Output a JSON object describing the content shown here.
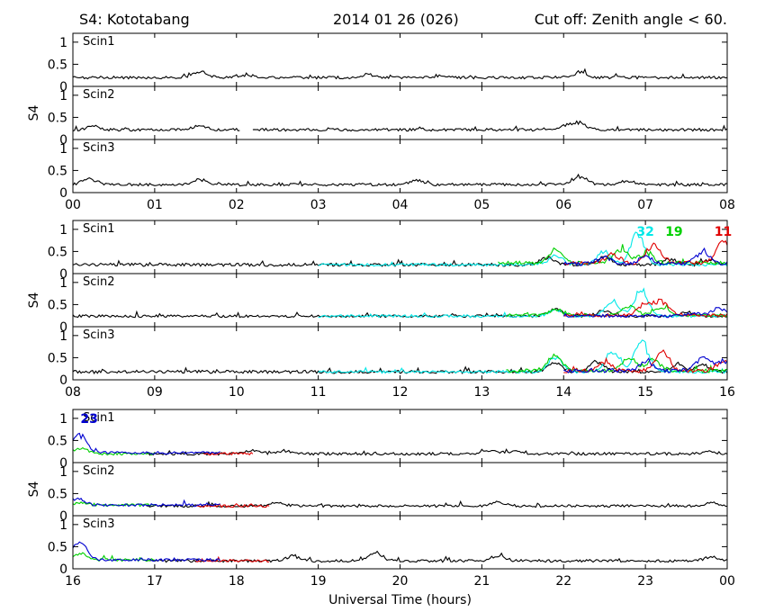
{
  "header": {
    "station": "S4: Kototabang",
    "date": "2014 01 26 (026)",
    "cutoff": "Cut off: Zenith angle < 60."
  },
  "chart_data": {
    "type": "line",
    "ylabel": "S4",
    "xlabel": "Universal Time (hours)",
    "ylim": [
      0,
      1.2
    ],
    "yticks": [
      "0",
      "0.5",
      "1"
    ],
    "panel_labels": [
      "Scin1",
      "Scin2",
      "Scin3"
    ],
    "colors": {
      "black": "#000000",
      "red": "#e00000",
      "green": "#00d000",
      "blue": "#0000d0",
      "cyan": "#00e8e8"
    },
    "groups": [
      {
        "hours": [
          0,
          8
        ],
        "tick_labels": [
          "00",
          "01",
          "02",
          "03",
          "04",
          "05",
          "06",
          "07",
          "08"
        ],
        "annotations": [],
        "panels": [
          {
            "label": "Scin1",
            "gaps": [],
            "series": [
              {
                "color": "black",
                "baseline": 0.2,
                "noise": 0.03,
                "bumps": [
                  [
                    1.55,
                    0.35
                  ],
                  [
                    3.6,
                    0.28
                  ],
                  [
                    6.2,
                    0.33
                  ],
                  [
                    2.1,
                    0.26
                  ],
                  [
                    4.5,
                    0.25
                  ]
                ]
              }
            ]
          },
          {
            "label": "Scin2",
            "gaps": [
              [
                2.05,
                2.2
              ]
            ],
            "series": [
              {
                "color": "black",
                "baseline": 0.22,
                "noise": 0.03,
                "bumps": [
                  [
                    0.25,
                    0.3
                  ],
                  [
                    1.55,
                    0.32
                  ],
                  [
                    6.2,
                    0.38
                  ],
                  [
                    6.05,
                    0.32
                  ]
                ]
              }
            ]
          },
          {
            "label": "Scin3",
            "gaps": [],
            "series": [
              {
                "color": "black",
                "baseline": 0.18,
                "noise": 0.03,
                "bumps": [
                  [
                    0.2,
                    0.32
                  ],
                  [
                    1.55,
                    0.3
                  ],
                  [
                    4.2,
                    0.28
                  ],
                  [
                    6.2,
                    0.38
                  ],
                  [
                    6.8,
                    0.25
                  ]
                ]
              }
            ]
          }
        ]
      },
      {
        "hours": [
          8,
          16
        ],
        "tick_labels": [
          "08",
          "09",
          "10",
          "11",
          "12",
          "13",
          "14",
          "15",
          "16"
        ],
        "annotations": [
          {
            "text": "32",
            "color": "cyan",
            "x": 15.0,
            "y": 0.85
          },
          {
            "text": "19",
            "color": "green",
            "x": 15.35,
            "y": 0.85
          },
          {
            "text": "11",
            "color": "red",
            "x": 15.95,
            "y": 0.85
          }
        ],
        "panels": [
          {
            "label": "Scin1",
            "gaps": [],
            "series": [
              {
                "color": "black",
                "baseline": 0.2,
                "noise": 0.035,
                "bumps": [
                  [
                    13.8,
                    0.38
                  ],
                  [
                    14.5,
                    0.42
                  ],
                  [
                    15.3,
                    0.35
                  ],
                  [
                    15.8,
                    0.32
                  ]
                ]
              },
              {
                "color": "cyan",
                "baseline": 0.2,
                "start": 11.0,
                "noise": 0.03,
                "bumps": [
                  [
                    14.9,
                    0.98
                  ],
                  [
                    14.5,
                    0.55
                  ],
                  [
                    13.9,
                    0.45
                  ]
                ]
              },
              {
                "color": "green",
                "baseline": 0.24,
                "start": 13.2,
                "noise": 0.04,
                "bumps": [
                  [
                    13.9,
                    0.6
                  ],
                  [
                    14.7,
                    0.6
                  ],
                  [
                    15.0,
                    0.5
                  ]
                ]
              },
              {
                "color": "red",
                "baseline": 0.24,
                "start": 14.0,
                "noise": 0.04,
                "bumps": [
                  [
                    15.1,
                    0.72
                  ],
                  [
                    15.95,
                    0.8
                  ],
                  [
                    14.6,
                    0.45
                  ]
                ]
              },
              {
                "color": "blue",
                "baseline": 0.22,
                "start": 14.0,
                "noise": 0.04,
                "bumps": [
                  [
                    15.7,
                    0.52
                  ],
                  [
                    15.0,
                    0.4
                  ],
                  [
                    14.5,
                    0.38
                  ]
                ]
              }
            ]
          },
          {
            "label": "Scin2",
            "gaps": [],
            "series": [
              {
                "color": "black",
                "baseline": 0.24,
                "noise": 0.03,
                "bumps": [
                  [
                    13.9,
                    0.4
                  ],
                  [
                    14.5,
                    0.38
                  ],
                  [
                    15.5,
                    0.35
                  ]
                ]
              },
              {
                "color": "cyan",
                "baseline": 0.24,
                "start": 11.0,
                "noise": 0.03,
                "bumps": [
                  [
                    14.95,
                    0.88
                  ],
                  [
                    14.6,
                    0.62
                  ],
                  [
                    13.9,
                    0.4
                  ]
                ]
              },
              {
                "color": "green",
                "baseline": 0.26,
                "start": 13.3,
                "noise": 0.035,
                "bumps": [
                  [
                    13.9,
                    0.4
                  ],
                  [
                    14.8,
                    0.5
                  ],
                  [
                    15.2,
                    0.45
                  ]
                ]
              },
              {
                "color": "red",
                "baseline": 0.26,
                "start": 14.0,
                "noise": 0.035,
                "bumps": [
                  [
                    15.2,
                    0.62
                  ],
                  [
                    15.0,
                    0.55
                  ]
                ]
              },
              {
                "color": "blue",
                "baseline": 0.24,
                "start": 14.0,
                "noise": 0.035,
                "bumps": [
                  [
                    15.9,
                    0.45
                  ],
                  [
                    15.6,
                    0.32
                  ]
                ]
              }
            ]
          },
          {
            "label": "Scin3",
            "gaps": [],
            "series": [
              {
                "color": "black",
                "baseline": 0.18,
                "noise": 0.035,
                "bumps": [
                  [
                    13.9,
                    0.42
                  ],
                  [
                    14.4,
                    0.45
                  ],
                  [
                    15.4,
                    0.38
                  ],
                  [
                    15.7,
                    0.35
                  ]
                ]
              },
              {
                "color": "cyan",
                "baseline": 0.18,
                "start": 11.0,
                "noise": 0.03,
                "bumps": [
                  [
                    14.95,
                    0.98
                  ],
                  [
                    14.6,
                    0.7
                  ],
                  [
                    13.9,
                    0.55
                  ]
                ]
              },
              {
                "color": "green",
                "baseline": 0.2,
                "start": 13.3,
                "noise": 0.04,
                "bumps": [
                  [
                    13.9,
                    0.6
                  ],
                  [
                    14.8,
                    0.55
                  ],
                  [
                    15.1,
                    0.5
                  ]
                ]
              },
              {
                "color": "red",
                "baseline": 0.2,
                "start": 14.0,
                "noise": 0.04,
                "bumps": [
                  [
                    15.2,
                    0.72
                  ],
                  [
                    15.95,
                    0.45
                  ],
                  [
                    14.5,
                    0.4
                  ]
                ]
              },
              {
                "color": "blue",
                "baseline": 0.2,
                "start": 14.0,
                "noise": 0.04,
                "bumps": [
                  [
                    15.7,
                    0.55
                  ],
                  [
                    15.95,
                    0.48
                  ],
                  [
                    15.0,
                    0.42
                  ]
                ]
              }
            ]
          }
        ]
      },
      {
        "hours": [
          16,
          24
        ],
        "tick_labels": [
          "16",
          "17",
          "18",
          "19",
          "20",
          "21",
          "22",
          "23",
          "00"
        ],
        "annotations": [
          {
            "text": "23",
            "color": "blue",
            "x": 16.2,
            "y": 0.9
          }
        ],
        "panels": [
          {
            "label": "Scin1",
            "gaps": [],
            "series": [
              {
                "color": "black",
                "baseline": 0.2,
                "start": 16.9,
                "noise": 0.03,
                "bumps": [
                  [
                    18.2,
                    0.3
                  ],
                  [
                    18.6,
                    0.28
                  ],
                  [
                    21.1,
                    0.3
                  ],
                  [
                    21.4,
                    0.27
                  ],
                  [
                    23.8,
                    0.25
                  ]
                ]
              },
              {
                "color": "green",
                "baseline": 0.2,
                "start": 16.0,
                "end": 17.0,
                "noise": 0.03,
                "bumps": [
                  [
                    16.1,
                    0.35
                  ]
                ]
              },
              {
                "color": "red",
                "baseline": 0.2,
                "start": 17.6,
                "end": 18.2,
                "noise": 0.03,
                "bumps": []
              },
              {
                "color": "blue",
                "baseline": 0.22,
                "start": 16.0,
                "end": 17.8,
                "noise": 0.03,
                "bumps": [
                  [
                    16.06,
                    0.55
                  ],
                  [
                    16.12,
                    0.38
                  ]
                ]
              }
            ]
          },
          {
            "label": "Scin2",
            "gaps": [],
            "series": [
              {
                "color": "black",
                "baseline": 0.22,
                "start": 16.9,
                "noise": 0.03,
                "bumps": [
                  [
                    18.5,
                    0.3
                  ],
                  [
                    21.2,
                    0.32
                  ],
                  [
                    23.8,
                    0.3
                  ]
                ]
              },
              {
                "color": "green",
                "baseline": 0.24,
                "start": 16.0,
                "end": 17.0,
                "noise": 0.03,
                "bumps": [
                  [
                    16.1,
                    0.3
                  ]
                ]
              },
              {
                "color": "red",
                "baseline": 0.22,
                "start": 17.5,
                "end": 18.4,
                "noise": 0.03,
                "bumps": []
              },
              {
                "color": "blue",
                "baseline": 0.24,
                "start": 16.0,
                "end": 17.8,
                "noise": 0.03,
                "bumps": [
                  [
                    16.06,
                    0.4
                  ]
                ]
              }
            ]
          },
          {
            "label": "Scin3",
            "gaps": [],
            "series": [
              {
                "color": "black",
                "baseline": 0.18,
                "start": 16.9,
                "noise": 0.03,
                "bumps": [
                  [
                    19.7,
                    0.38
                  ],
                  [
                    18.7,
                    0.3
                  ],
                  [
                    21.2,
                    0.3
                  ],
                  [
                    23.8,
                    0.28
                  ]
                ]
              },
              {
                "color": "green",
                "baseline": 0.2,
                "start": 16.0,
                "end": 17.0,
                "noise": 0.03,
                "bumps": [
                  [
                    16.1,
                    0.35
                  ]
                ]
              },
              {
                "color": "red",
                "baseline": 0.18,
                "start": 17.5,
                "end": 18.4,
                "noise": 0.03,
                "bumps": []
              },
              {
                "color": "blue",
                "baseline": 0.2,
                "start": 16.0,
                "end": 17.8,
                "noise": 0.03,
                "bumps": [
                  [
                    16.06,
                    0.5
                  ],
                  [
                    16.12,
                    0.36
                  ]
                ]
              }
            ]
          }
        ]
      }
    ]
  }
}
